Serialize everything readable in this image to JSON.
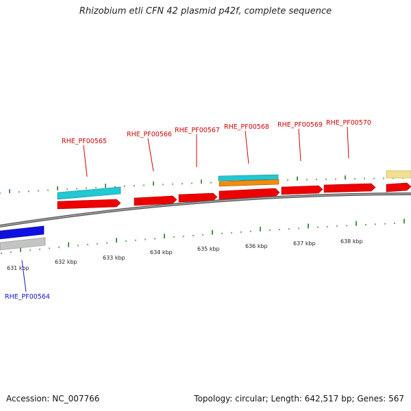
{
  "title": "Rhizobium etli CFN 42 plasmid p42f, complete sequence",
  "footer": {
    "accession": "Accession: NC_007766",
    "summary": "Topology: circular; Length: 642,517 bp; Genes: 567"
  },
  "colors": {
    "forward_cds": "#ee0000",
    "reverse_cds": "#1010e0",
    "gene_cyan": "#22c8d2",
    "gene_orange": "#f08c10",
    "gene_khaki": "#f0e090",
    "gene_gray": "#c4c4c4",
    "label_forward": "#cc0000",
    "label_reverse": "#1010cc",
    "tick": "#1a7a1a",
    "backbone": "#777777"
  },
  "scale": {
    "unit": "kbp",
    "labels": [
      "631 kbp",
      "632 kbp",
      "633 kbp",
      "634 kbp",
      "635 kbp",
      "636 kbp",
      "637 kbp",
      "638 kbp"
    ]
  },
  "gene_labels": [
    {
      "text": "RHE_PF00564",
      "strand": "reverse"
    },
    {
      "text": "RHE_PF00565",
      "strand": "forward"
    },
    {
      "text": "RHE_PF00566",
      "strand": "forward"
    },
    {
      "text": "RHE_PF00567",
      "strand": "forward"
    },
    {
      "text": "RHE_PF00568",
      "strand": "forward"
    },
    {
      "text": "RHE_PF00569",
      "strand": "forward"
    },
    {
      "text": "RHE_PF00570",
      "strand": "forward"
    }
  ]
}
